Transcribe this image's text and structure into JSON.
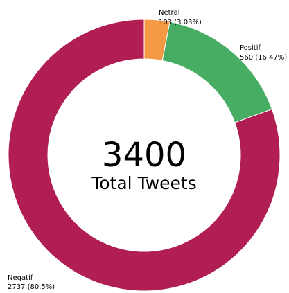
{
  "chart_data": {
    "type": "pie",
    "style": "donut",
    "center": {
      "total": "3400",
      "caption": "Total Tweets"
    },
    "slices": [
      {
        "name": "Netral",
        "value": 103,
        "percent": 3.03,
        "value_label": "103 (3.03%)",
        "color": "#f49a45"
      },
      {
        "name": "Positif",
        "value": 560,
        "percent": 16.47,
        "value_label": "560 (16.47%)",
        "color": "#47ad62"
      },
      {
        "name": "Negatif",
        "value": 2737,
        "percent": 80.5,
        "value_label": "2737 (80.5%)",
        "color": "#b11e54"
      }
    ],
    "start_angle": "12 o'clock",
    "direction": "clockwise"
  }
}
